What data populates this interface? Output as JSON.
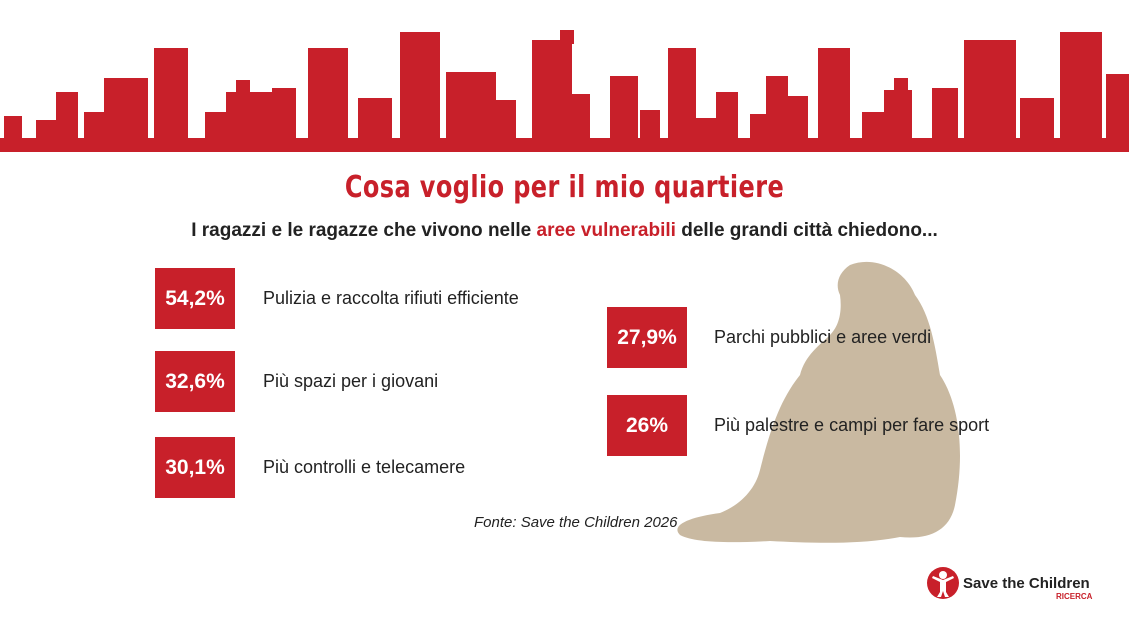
{
  "header": {
    "title": "Cosa voglio per il mio quartiere",
    "subtitle": {
      "before": "I ragazzi e le ragazze che vivono nelle",
      "highlight": "aree vulnerabili",
      "after": "delle grandi città chiedono..."
    }
  },
  "items": [
    {
      "value": "54,2%",
      "label": "Pulizia e raccolta rifiuti efficiente"
    },
    {
      "value": "32,6%",
      "label": "Più spazi per i giovani"
    },
    {
      "value": "30,1%",
      "label": "Più controlli e telecamere"
    },
    {
      "value": "27,9%",
      "label": "Parchi pubblici e aree verdi"
    },
    {
      "value": "26%",
      "label": "Più palestre e campi per fare sport"
    }
  ],
  "source": "Fonte: Save the Children 2026",
  "logo": {
    "name": "Save the Children",
    "sub": "RICERCA"
  }
}
